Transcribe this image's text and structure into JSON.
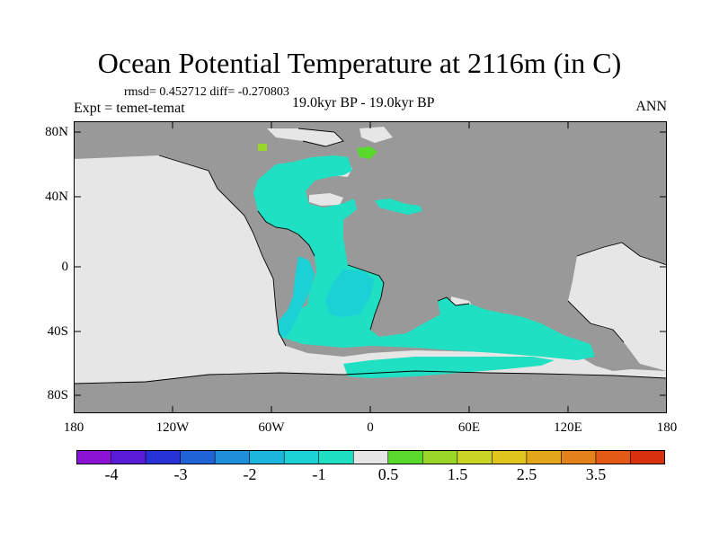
{
  "title": "Ocean Potential Temperature at 2116m (in C)",
  "stats": "rmsd= 0.452712 diff= -0.270803",
  "experiment": "Expt = temet-temat",
  "period": "19.0kyr BP - 19.0kyr BP",
  "season": "ANN",
  "axes": {
    "lat_labels": [
      "80N",
      "40N",
      "0",
      "40S",
      "80S"
    ],
    "lon_labels": [
      "180",
      "120W",
      "60W",
      "0",
      "60E",
      "120E",
      "180"
    ]
  },
  "colorbar": {
    "labels": [
      "-4",
      "-3",
      "-2",
      "-1",
      "0.5",
      "1.5",
      "2.5",
      "3.5"
    ],
    "colors": [
      "#8a13d6",
      "#5a1bd9",
      "#2733d6",
      "#1f63d6",
      "#1f8fd9",
      "#1cb5dc",
      "#1cd1d6",
      "#1fe0c3",
      "#e6e6e6",
      "#59d92b",
      "#9ad628",
      "#c9d424",
      "#e0c51f",
      "#e3a51c",
      "#e3821a",
      "#e35a17",
      "#d93010"
    ]
  },
  "colors": {
    "land": "#999999",
    "no_data": "#e6e6e6",
    "anomaly_main": "#1fe0c3",
    "anomaly_secondary": "#1cd1d6",
    "positive_small": "#59d92b"
  }
}
